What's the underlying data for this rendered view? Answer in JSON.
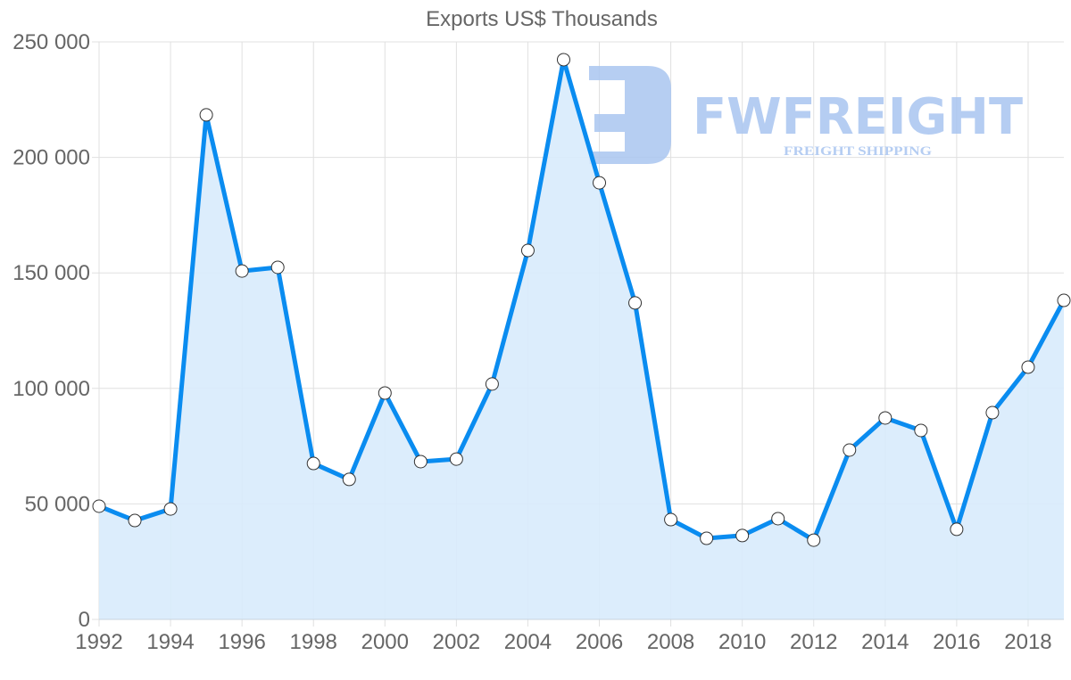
{
  "chart_data": {
    "type": "area",
    "title": "Exports US$ Thousands",
    "xlabel": "",
    "ylabel": "",
    "x": [
      1992,
      1993,
      1994,
      1995,
      1996,
      1997,
      1998,
      1999,
      2000,
      2001,
      2002,
      2003,
      2004,
      2005,
      2006,
      2007,
      2008,
      2009,
      2010,
      2011,
      2012,
      2013,
      2014,
      2015,
      2016,
      2017,
      2018,
      2019
    ],
    "series": [
      {
        "name": "Exports US$ Thousands",
        "values": [
          49000,
          42800,
          47800,
          218400,
          150800,
          152400,
          67500,
          60600,
          98000,
          68300,
          69400,
          101900,
          159700,
          242300,
          189000,
          137000,
          43200,
          35100,
          36300,
          43600,
          34300,
          73300,
          87200,
          81800,
          39000,
          89500,
          109200,
          138100
        ]
      }
    ],
    "ylim": [
      0,
      250000
    ],
    "y_ticks": [
      "0",
      "50 000",
      "100 000",
      "150 000",
      "200 000",
      "250 000"
    ],
    "x_ticks": [
      "1992",
      "1994",
      "1996",
      "1998",
      "2000",
      "2002",
      "2004",
      "2006",
      "2008",
      "2010",
      "2012",
      "2014",
      "2016",
      "2018"
    ],
    "grid": true,
    "legend": "none",
    "colors": {
      "line": "#0a8cf0",
      "fill": "#d8ebfc",
      "grid": "#e0e0e0",
      "marker_fill": "#ffffff",
      "marker_stroke": "#333333",
      "watermark": "#a9c5f0"
    }
  },
  "watermark": {
    "brand": "FWFREIGHT",
    "tagline": "FREIGHT SHIPPING"
  }
}
